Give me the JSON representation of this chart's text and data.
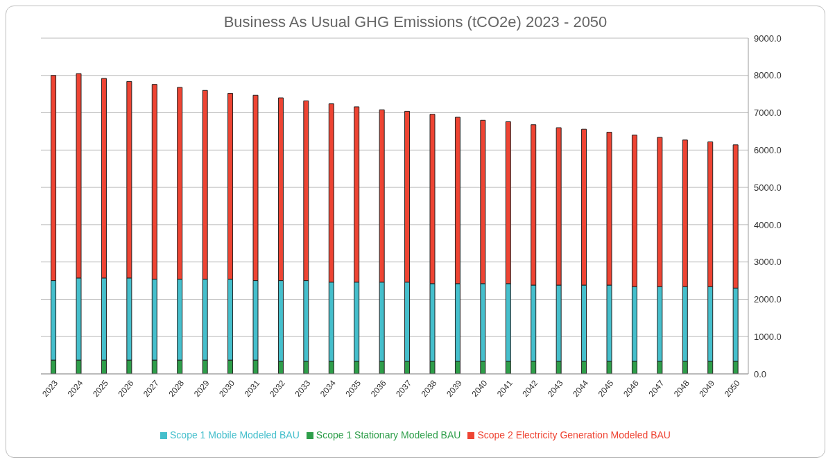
{
  "chart_data": {
    "type": "bar",
    "title": "Business As Usual GHG Emissions (tCO2e) 2023 - 2050",
    "stacked": true,
    "grid": "y",
    "legend": "bottom",
    "categories": [
      "2023",
      "2024",
      "2025",
      "2026",
      "2027",
      "2028",
      "2029",
      "2030",
      "2031",
      "2032",
      "2033",
      "2034",
      "2035",
      "2036",
      "2037",
      "2038",
      "2039",
      "2040",
      "2041",
      "2042",
      "2043",
      "2044",
      "2045",
      "2046",
      "2047",
      "2048",
      "2049",
      "2050"
    ],
    "series": [
      {
        "name": "Scope 1 Stationary Modeled BAU",
        "color": "#2e9e4a",
        "values": [
          370,
          370,
          370,
          370,
          370,
          370,
          370,
          370,
          370,
          340,
          340,
          340,
          340,
          340,
          340,
          340,
          340,
          340,
          340,
          340,
          340,
          340,
          340,
          340,
          340,
          340,
          340,
          340
        ]
      },
      {
        "name": "Scope 1 Mobile Modeled BAU",
        "color": "#45bfcc",
        "values": [
          2130,
          2200,
          2200,
          2200,
          2170,
          2170,
          2170,
          2170,
          2130,
          2160,
          2160,
          2120,
          2120,
          2120,
          2120,
          2080,
          2080,
          2080,
          2080,
          2040,
          2040,
          2040,
          2040,
          2000,
          2000,
          2000,
          2000,
          1960
        ]
      },
      {
        "name": "Scope 2 Electricity Generation Modeled BAU",
        "color": "#ee4433",
        "values": [
          5500,
          5480,
          5350,
          5270,
          5220,
          5140,
          5060,
          4980,
          4970,
          4900,
          4820,
          4780,
          4700,
          4620,
          4580,
          4540,
          4460,
          4380,
          4340,
          4300,
          4220,
          4180,
          4100,
          4060,
          4000,
          3930,
          3880,
          3840
        ]
      }
    ],
    "ylim": [
      0,
      9000
    ],
    "yticks": [
      {
        "value": 0,
        "label": "0.0"
      },
      {
        "value": 1000,
        "label": "1000.0"
      },
      {
        "value": 2000,
        "label": "2000.0"
      },
      {
        "value": 3000,
        "label": "3000.0"
      },
      {
        "value": 4000,
        "label": "4000.0"
      },
      {
        "value": 5000,
        "label": "5000.0"
      },
      {
        "value": 6000,
        "label": "6000.0"
      },
      {
        "value": 7000,
        "label": "7000.0"
      },
      {
        "value": 8000,
        "label": "8000.0"
      },
      {
        "value": 9000,
        "label": "9000.0"
      }
    ]
  }
}
